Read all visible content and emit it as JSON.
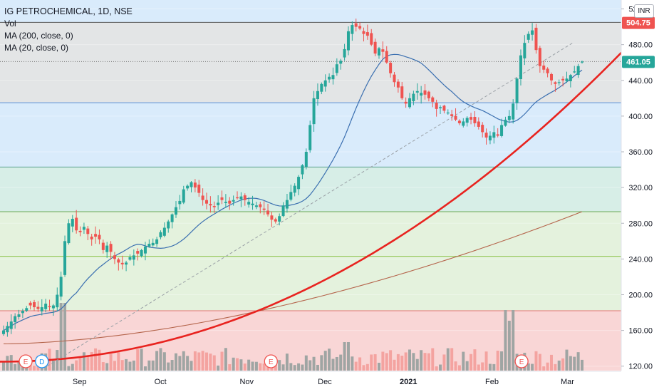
{
  "legend": {
    "title": "IG PETROCHEMICAL, 1D, NSE",
    "vol": "Vol",
    "ma200": "MA (200, close, 0)",
    "ma20": "MA (20, close, 0)"
  },
  "currency": "INR",
  "colors": {
    "up": "#26a69a",
    "down": "#ef5350",
    "vol_up": "#9fa5a3",
    "vol_down": "#f4a3a0",
    "ma20": "#3a6fb0",
    "ma200": "#b5654c",
    "trend_curve": "#e8231f",
    "zone_red": "#f9d6d6",
    "zone_green": "#e4f2dd",
    "zone_teal": "#d7eee7",
    "zone_blue": "#d9ebfb",
    "zone_gray": "#e3e5e6",
    "badge_last": "#26a69a",
    "badge_high": "#ef5350"
  },
  "chart_data": {
    "type": "candlestick",
    "ylim": [
      115,
      530
    ],
    "y_ticks": [
      120,
      160,
      200,
      240,
      280,
      320,
      360,
      400,
      440,
      480,
      520
    ],
    "y_tick_labels": [
      "120.00",
      "160.00",
      "200.00",
      "240.00",
      "280.00",
      "320.00",
      "360.00",
      "400.00",
      "440.00",
      "480.00",
      "520.00"
    ],
    "x_tick_labels": [
      {
        "label": "Sep",
        "date": "2020-09-01"
      },
      {
        "label": "Oct",
        "date": "2020-10-01"
      },
      {
        "label": "Nov",
        "date": "2020-11-02"
      },
      {
        "label": "Dec",
        "date": "2020-12-01"
      },
      {
        "label": "2021",
        "date": "2021-01-01"
      },
      {
        "label": "Feb",
        "date": "2021-02-01"
      },
      {
        "label": "Mar",
        "date": "2021-03-01"
      }
    ],
    "date_start": "2020-08-03",
    "date_end": "2021-03-03",
    "price_labels": [
      {
        "value": 504.75,
        "text": "504.75",
        "kind": "high"
      },
      {
        "value": 461.05,
        "text": "461.05",
        "kind": "last"
      }
    ],
    "zones": [
      {
        "from": 115,
        "to": 182,
        "color": "zone_red"
      },
      {
        "from": 182,
        "to": 293,
        "color": "zone_green"
      },
      {
        "from": 293,
        "to": 343,
        "color": "zone_teal"
      },
      {
        "from": 343,
        "to": 415,
        "color": "zone_blue"
      },
      {
        "from": 415,
        "to": 505,
        "color": "zone_gray"
      },
      {
        "from": 505,
        "to": 530,
        "color": "zone_blue"
      }
    ],
    "h_levels": [
      {
        "value": 182,
        "color": "#e57373"
      },
      {
        "value": 243,
        "color": "#8bc34a"
      },
      {
        "value": 293,
        "color": "#6aaa55"
      },
      {
        "value": 343,
        "color": "#5aa08c"
      },
      {
        "value": 415,
        "color": "#5c8fd6"
      },
      {
        "value": 505,
        "color": "#555555"
      }
    ],
    "dotted_level": 461.05,
    "trend_line": {
      "from": {
        "date": "2020-08-20",
        "value": 120
      },
      "to": {
        "date": "2021-03-03",
        "value": 482
      }
    },
    "earnings_markers": [
      {
        "label": "E",
        "date": "2020-08-12"
      },
      {
        "label": "D",
        "date": "2020-08-18"
      },
      {
        "label": "E",
        "date": "2020-11-11"
      },
      {
        "label": "E",
        "date": "2021-02-12"
      }
    ],
    "closes": [
      160,
      165,
      170,
      176,
      178,
      182,
      185,
      188,
      186,
      184,
      186,
      190,
      186,
      188,
      200,
      220,
      260,
      280,
      285,
      272,
      270,
      276,
      268,
      262,
      265,
      262,
      250,
      255,
      248,
      240,
      236,
      234,
      236,
      242,
      244,
      246,
      250,
      254,
      257,
      258,
      262,
      270,
      275,
      282,
      290,
      298,
      305,
      318,
      322,
      326,
      320,
      314,
      306,
      302,
      300,
      298,
      303,
      306,
      304,
      302,
      306,
      308,
      310,
      306,
      304,
      302,
      300,
      298,
      295,
      290,
      284,
      282,
      288,
      300,
      306,
      315,
      322,
      332,
      345,
      360,
      390,
      420,
      428,
      436,
      440,
      444,
      446,
      458,
      462,
      475,
      495,
      502,
      500,
      498,
      492,
      490,
      480,
      470,
      476,
      472,
      460,
      448,
      438,
      432,
      420,
      414,
      420,
      425,
      428,
      426,
      424,
      420,
      416,
      408,
      410,
      406,
      404,
      400,
      396,
      392,
      394,
      398,
      396,
      392,
      388,
      382,
      376,
      378,
      382,
      378,
      390,
      396,
      400,
      414,
      442,
      468,
      482,
      492,
      496,
      474,
      456,
      452,
      448,
      440,
      436,
      438,
      440,
      442,
      446,
      450,
      456,
      461.05
    ]
  }
}
